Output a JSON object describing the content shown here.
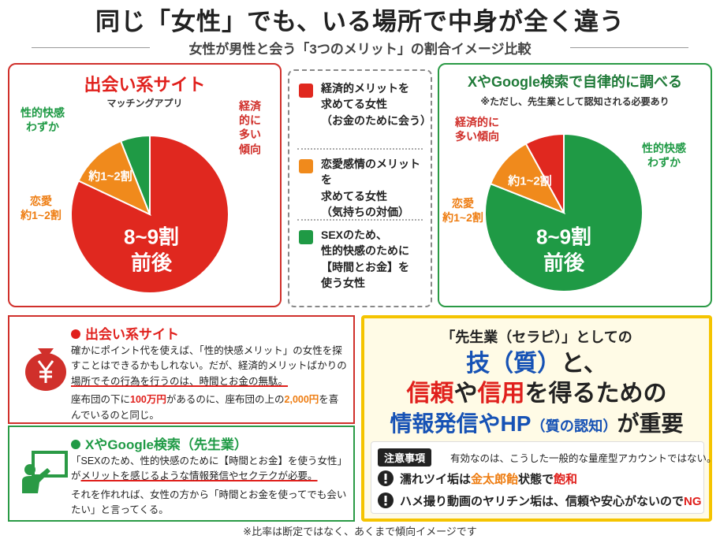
{
  "title": "同じ「女性」でも、いる場所で中身が全く違う",
  "subtitle": "女性が男性と会う「3つのメリット」の割合イメージ比較",
  "chart_data": [
    {
      "type": "pie",
      "title": "出会い系サイト",
      "subtitle": "マッチングアプリ",
      "categories": [
        "経済的に\n多い傾向",
        "恋愛\n約1~2割",
        "性的快感\nわずか"
      ],
      "values": [
        82,
        12,
        6
      ],
      "colors": [
        "#e0281f",
        "#f08a1c",
        "#1f9a45"
      ],
      "annotations": [
        "8~9割\n前後",
        "約1~2割"
      ]
    },
    {
      "type": "pie",
      "title": "XやGoogle検索で自律的に調べる",
      "subtitle": "※ただし、先生業として認知される必要あり",
      "categories": [
        "性的快感\nわずか",
        "恋愛\n約1~2割",
        "経済的に\n多い傾向"
      ],
      "values": [
        81,
        11,
        8
      ],
      "colors": [
        "#1f9a45",
        "#f08a1c",
        "#e0281f"
      ],
      "annotations": [
        "8~9割\n前後",
        "約1~2割"
      ]
    }
  ],
  "legend": [
    {
      "color": "#e0281f",
      "text": "経済的メリットを\n求めてる女性\n（お金のために会う）"
    },
    {
      "color": "#f08a1c",
      "text": "恋愛感情のメリットを\n求めてる女性\n（気持ちの対価）"
    },
    {
      "color": "#1f9a45",
      "text": "SEXのため、\n性的快感のために\n【時間とお金】を\n使う女性"
    }
  ],
  "sections": [
    {
      "heading": "出会い系サイト",
      "color": "#e0201c",
      "paragraphs": [
        [
          "確かにポイント代を使えば、「性的快感メリット」の女性を探すことはできるかもしれない。だが、経済的メリットばかりの",
          {
            "text": "場所でその行為を行うのは、時間とお金の無駄。",
            "style": "underline"
          }
        ],
        [
          "座布団の下に",
          {
            "text": "100万円",
            "style": "red"
          },
          "があるのに、座布団の上の",
          {
            "text": "2,000円",
            "style": "orange"
          },
          "を喜んでいるのと同じ。"
        ]
      ]
    },
    {
      "heading": "XやGoogle検索（先生業）",
      "color": "#1f9a45",
      "paragraphs": [
        [
          "「SEXのため、性的快感のために【時間とお金】を使う女性」が",
          {
            "text": "メリットを感じるような情報発信やセクテクが必要。",
            "style": "underline"
          }
        ],
        [
          "それを作れれば、女性の方から「時間とお金を使ってでも会いたい」と言ってくる。"
        ]
      ]
    }
  ],
  "callout": {
    "lines": [
      [
        "「先生業（セラピ）」としての"
      ],
      [
        {
          "text": "技（質）",
          "style": "blue"
        },
        "と、"
      ],
      [
        {
          "text": "信頼",
          "style": "red"
        },
        "や",
        {
          "text": "信用",
          "style": "red"
        },
        "を得るための"
      ],
      [
        {
          "text": "情報発信やHP",
          "style": "blue"
        },
        {
          "text": "（質の認知）",
          "style": "blue small"
        },
        "が重要"
      ]
    ],
    "notice_tag": "注意事項",
    "notice": "有効なのは、こうした一般的な量産型アカウントではない。",
    "warnings": [
      [
        "濡れツイ垢は",
        {
          "text": "金太郎飴",
          "style": "orange"
        },
        "状態で",
        {
          "text": "飽和",
          "style": "red"
        }
      ],
      [
        "ハメ撮り動画のヤリチン垢は、信頼や安心がないので",
        {
          "text": "NG",
          "style": "red"
        }
      ]
    ]
  },
  "footnote": "※比率は断定ではなく、あくまで傾向イメージです"
}
